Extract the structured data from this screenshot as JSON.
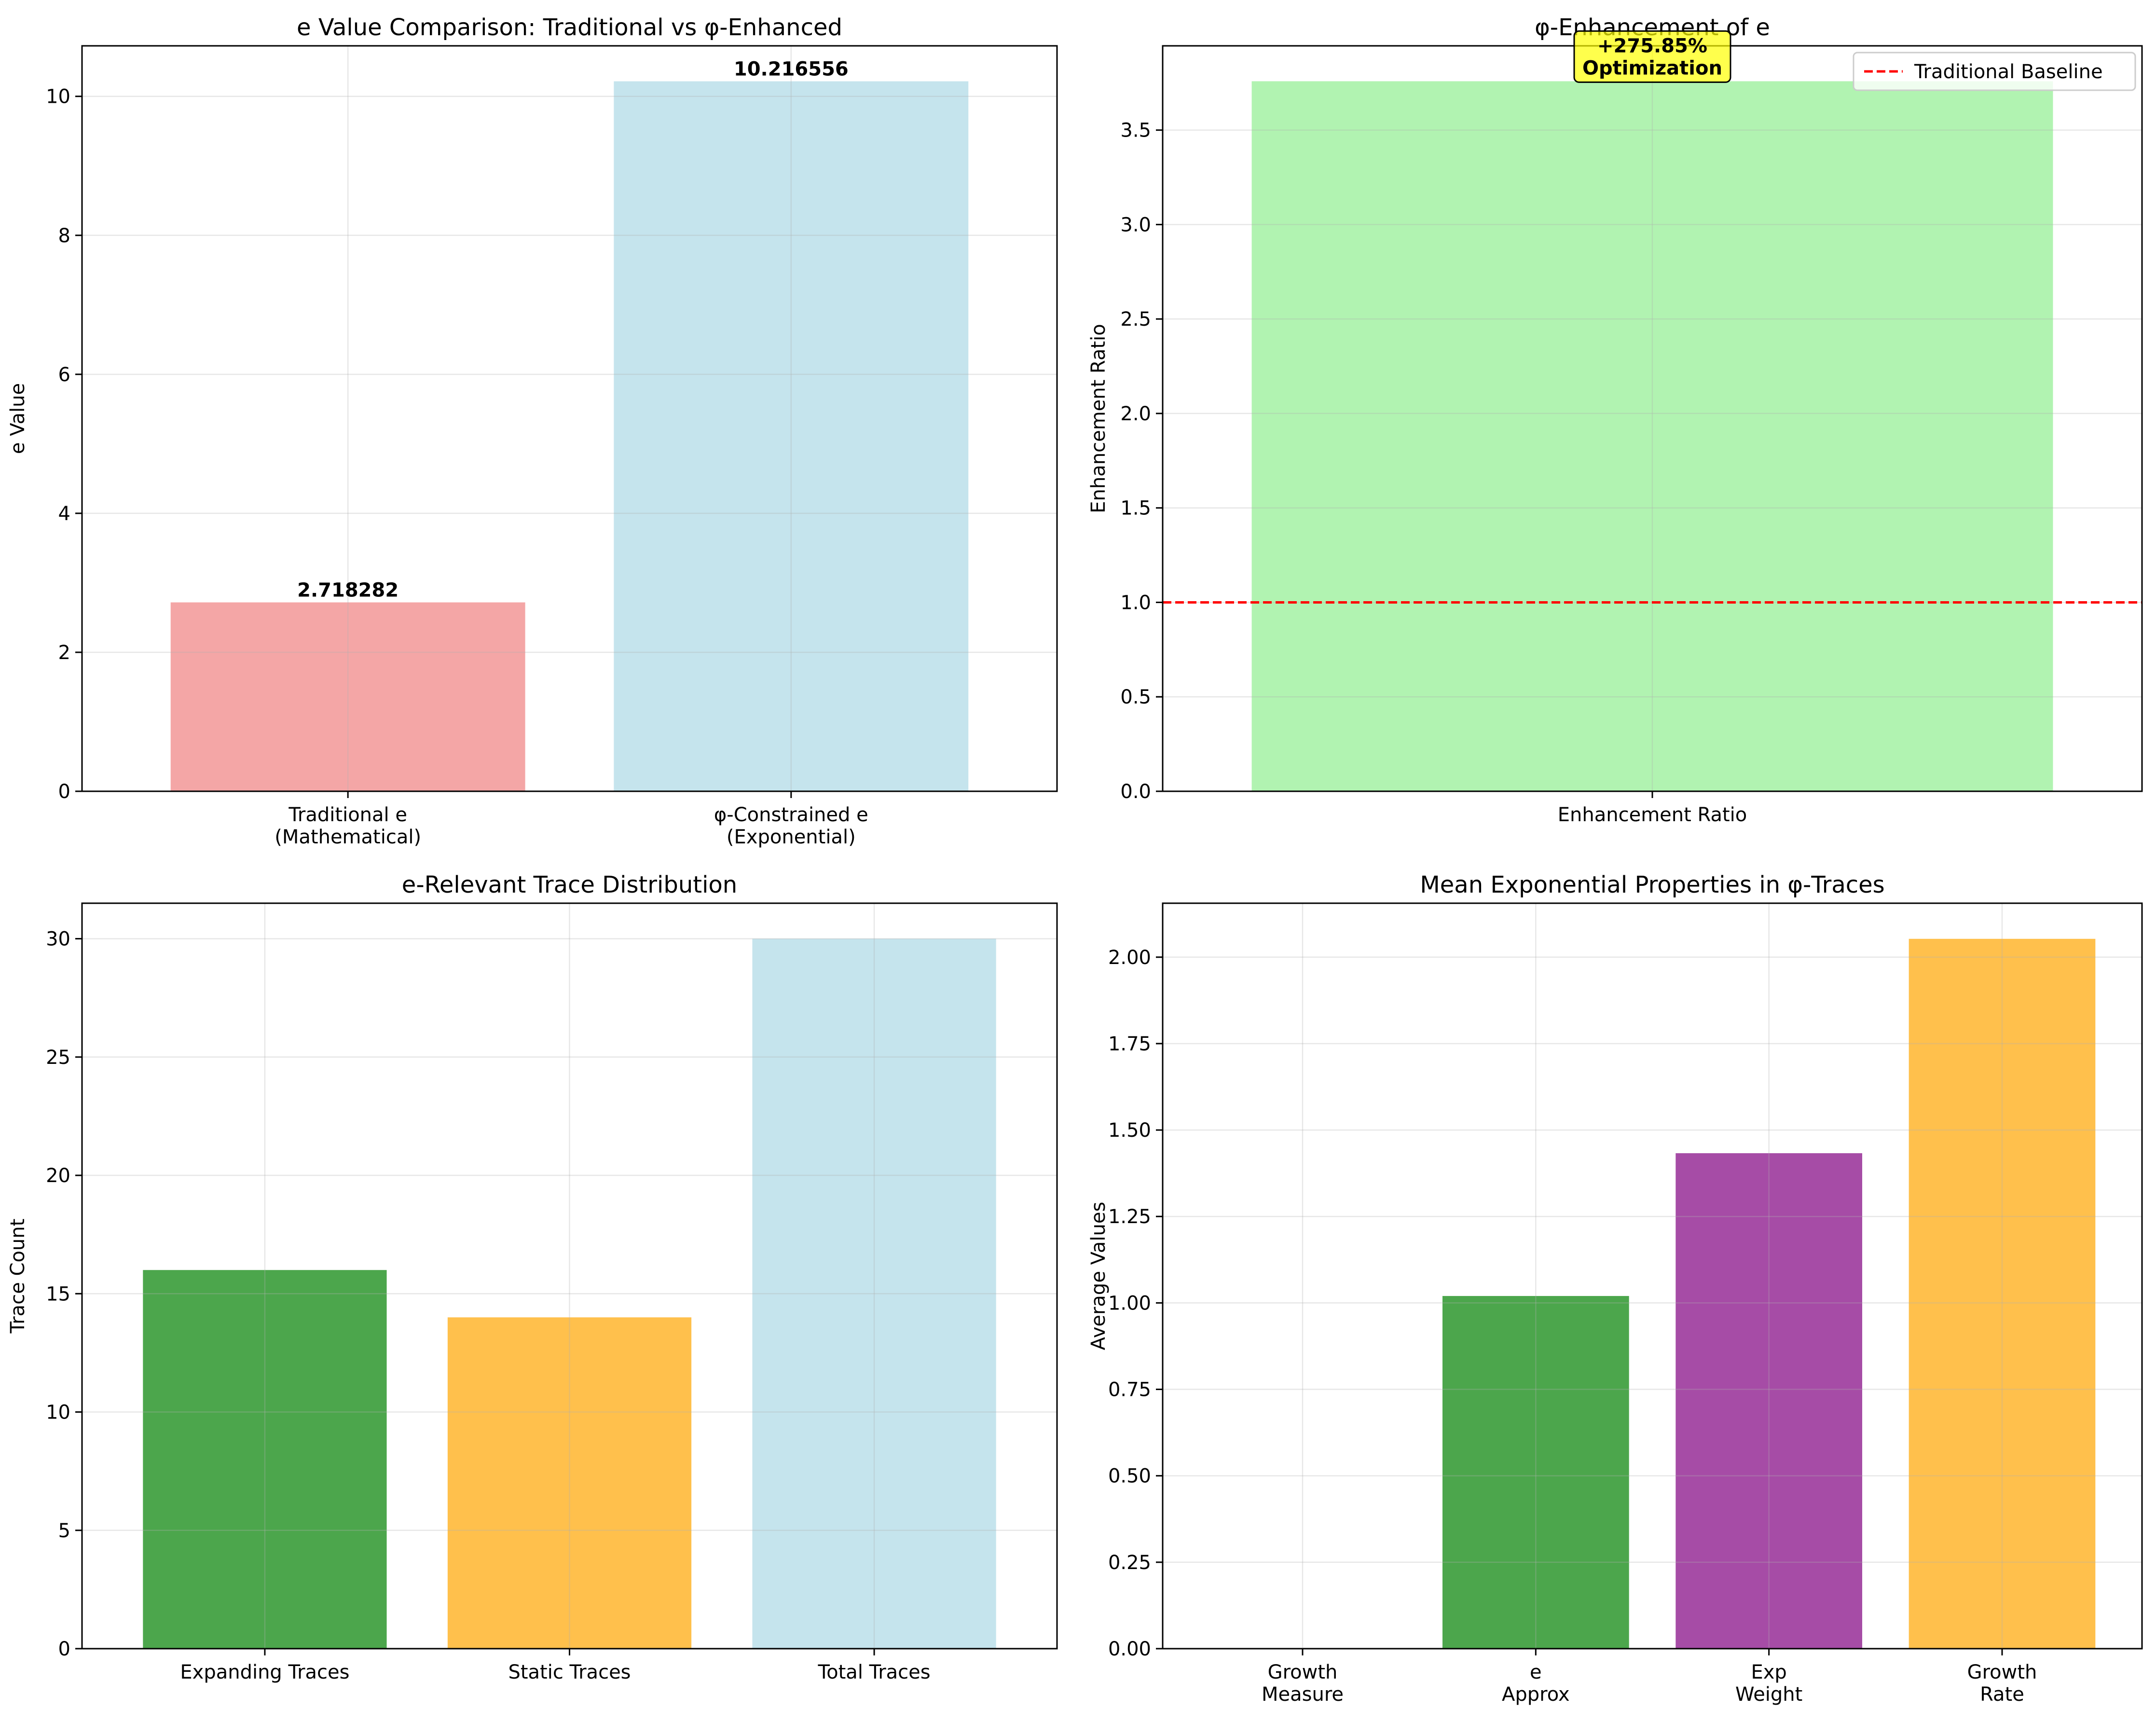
{
  "figure": {
    "background": "#ffffff"
  },
  "chart_data": [
    {
      "id": "p1",
      "type": "bar",
      "title": "e Value Comparison: Traditional vs φ-Enhanced",
      "xlabel": "",
      "ylabel": "e Value",
      "categories": [
        [
          "Traditional e",
          "(Mathematical)"
        ],
        [
          "φ-Constrained e",
          "(Exponential)"
        ]
      ],
      "values": [
        2.718282,
        10.216556
      ],
      "value_labels": [
        "2.718282",
        "10.216556"
      ],
      "colors": [
        "#F08080",
        "#ADD8E6"
      ],
      "ylim": [
        0,
        10.727
      ],
      "yticks": [
        0,
        2,
        4,
        6,
        8,
        10
      ],
      "ytick_labels": [
        "0",
        "2",
        "4",
        "6",
        "8",
        "10"
      ],
      "grid": true
    },
    {
      "id": "p2",
      "type": "bar",
      "title": "φ-Enhancement of e",
      "xlabel": "",
      "ylabel": "Enhancement Ratio",
      "categories": [
        [
          "Enhancement Ratio"
        ]
      ],
      "values": [
        3.7585
      ],
      "colors": [
        "#90EE90"
      ],
      "ylim": [
        0,
        3.946
      ],
      "yticks": [
        0,
        0.5,
        1,
        1.5,
        2,
        2.5,
        3,
        3.5
      ],
      "ytick_labels": [
        "0.0",
        "0.5",
        "1.0",
        "1.5",
        "2.0",
        "2.5",
        "3.0",
        "3.5"
      ],
      "grid": true,
      "baseline": {
        "value": 1.0,
        "label": "Traditional Baseline",
        "color": "#ff0000",
        "style": "dashed"
      },
      "annotation": {
        "lines": [
          "+275.85%",
          "Optimization"
        ],
        "at_value": 3.7585,
        "facecolor": "#ffff00"
      },
      "legend": {
        "placement": "top-right",
        "entries": [
          "Traditional Baseline"
        ]
      }
    },
    {
      "id": "p3",
      "type": "bar",
      "title": "e-Relevant Trace Distribution",
      "xlabel": "",
      "ylabel": "Trace Count",
      "categories": [
        [
          "Expanding Traces"
        ],
        [
          "Static Traces"
        ],
        [
          "Total Traces"
        ]
      ],
      "values": [
        16,
        14,
        30
      ],
      "colors": [
        "#008000",
        "#FFA500",
        "#ADD8E6"
      ],
      "ylim": [
        0,
        31.5
      ],
      "yticks": [
        0,
        5,
        10,
        15,
        20,
        25,
        30
      ],
      "ytick_labels": [
        "0",
        "5",
        "10",
        "15",
        "20",
        "25",
        "30"
      ],
      "grid": true
    },
    {
      "id": "p4",
      "type": "bar",
      "title": "Mean Exponential Properties in φ-Traces",
      "xlabel": "",
      "ylabel": "Average Values",
      "categories": [
        [
          "Growth",
          "Measure"
        ],
        [
          "e",
          "Approx"
        ],
        [
          "Exp",
          "Weight"
        ],
        [
          "Growth",
          "Rate"
        ]
      ],
      "values": [
        0.0,
        1.02,
        1.433,
        2.053
      ],
      "colors": [
        "#1f77b4",
        "#008000",
        "#800080",
        "#FFA500"
      ],
      "ylim": [
        0,
        2.156
      ],
      "yticks": [
        0,
        0.25,
        0.5,
        0.75,
        1.0,
        1.25,
        1.5,
        1.75,
        2.0
      ],
      "ytick_labels": [
        "0.00",
        "0.25",
        "0.50",
        "0.75",
        "1.00",
        "1.25",
        "1.50",
        "1.75",
        "2.00"
      ],
      "grid": true
    }
  ]
}
